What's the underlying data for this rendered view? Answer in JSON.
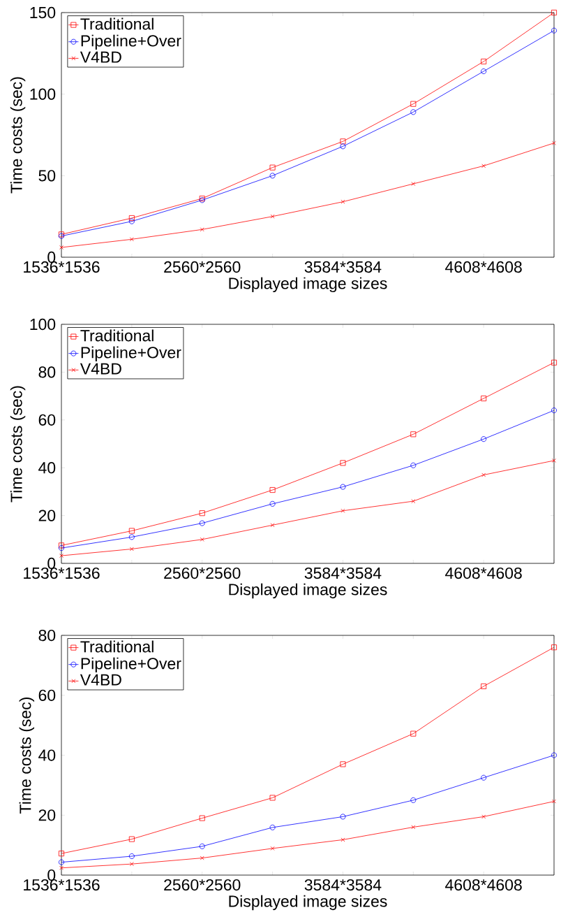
{
  "chart_data": [
    {
      "type": "line",
      "xlabel": "Displayed image sizes",
      "ylabel": "Time costs (sec)",
      "categories": [
        "1536*1536",
        null,
        "2560*2560",
        null,
        "3584*3584",
        null,
        "4608*4608",
        null
      ],
      "ylim": [
        0,
        150
      ],
      "yticks": [
        0,
        50,
        100,
        150
      ],
      "legend": "top left",
      "series": [
        {
          "name": "Traditional",
          "color": "#ff0000",
          "marker": "square",
          "values": [
            14,
            24,
            36,
            55,
            71,
            94,
            120,
            150
          ]
        },
        {
          "name": "Pipeline+Over",
          "color": "#0000ff",
          "marker": "circle",
          "values": [
            13,
            22,
            35,
            50,
            68,
            89,
            114,
            139
          ]
        },
        {
          "name": "V4BD",
          "color": "#ff0000",
          "marker": "cross",
          "values": [
            6,
            11,
            17,
            25,
            34,
            45,
            56,
            70
          ]
        }
      ]
    },
    {
      "type": "line",
      "xlabel": "Displayed image sizes",
      "ylabel": "Time costs (sec)",
      "categories": [
        "1536*1536",
        null,
        "2560*2560",
        null,
        "3584*3584",
        null,
        "4608*4608",
        null
      ],
      "ylim": [
        0,
        100
      ],
      "yticks": [
        0,
        20,
        40,
        60,
        80,
        100
      ],
      "legend": "top left",
      "series": [
        {
          "name": "Traditional",
          "color": "#ff0000",
          "marker": "square",
          "values": [
            7.5,
            13.6,
            21,
            30.7,
            42,
            54,
            69,
            84
          ]
        },
        {
          "name": "Pipeline+Over",
          "color": "#0000ff",
          "marker": "circle",
          "values": [
            6.4,
            11,
            16.8,
            24.9,
            32,
            41,
            52,
            64
          ]
        },
        {
          "name": "V4BD",
          "color": "#ff0000",
          "marker": "cross",
          "values": [
            3.2,
            6,
            10,
            16,
            22,
            26,
            37,
            43
          ]
        }
      ]
    },
    {
      "type": "line",
      "xlabel": "Displayed image sizes",
      "ylabel": "Time costs (sec)",
      "categories": [
        "1536*1536",
        null,
        "2560*2560",
        null,
        "3584*3584",
        null,
        "4608*4608",
        null
      ],
      "ylim": [
        0,
        80
      ],
      "yticks": [
        0,
        20,
        40,
        60,
        80
      ],
      "legend": "top left",
      "series": [
        {
          "name": "Traditional",
          "color": "#ff0000",
          "marker": "square",
          "values": [
            7.2,
            12,
            19,
            25.8,
            37,
            47.2,
            63,
            76
          ]
        },
        {
          "name": "Pipeline+Over",
          "color": "#0000ff",
          "marker": "circle",
          "values": [
            4.3,
            6.3,
            9.6,
            15.9,
            19.5,
            25,
            32.5,
            40
          ]
        },
        {
          "name": "V4BD",
          "color": "#ff0000",
          "marker": "cross",
          "values": [
            2.4,
            3.7,
            5.7,
            8.9,
            11.8,
            16,
            19.5,
            24.6
          ]
        }
      ]
    }
  ]
}
